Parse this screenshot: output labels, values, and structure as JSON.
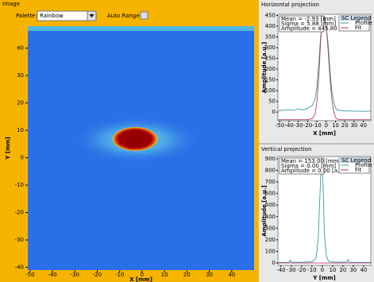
{
  "image_panel": {
    "title": "Image",
    "palette_label": "Palette:",
    "palette_value": "Rainbow",
    "auto_range_label": "Auto Range:",
    "x_label": "X [mm]",
    "y_label": "Y [mm]",
    "xlim": [
      -51,
      50
    ],
    "xticks": [
      -50,
      -40,
      -30,
      -20,
      -10,
      0,
      10,
      20,
      30,
      40
    ],
    "ylim": [
      -41,
      48
    ],
    "yticks": [
      -40,
      -30,
      -20,
      -10,
      0,
      10,
      20,
      30,
      40
    ]
  },
  "horizontal_projection": {
    "type": "line",
    "title": "Horizontal projection",
    "stats": [
      "Mean = -2.93 [mm]",
      "Sigma = 5.88 [mm]",
      "Amplitude = 445.80 [a.u.]"
    ],
    "legend_title": "SC Legend",
    "x_label": "X [mm]",
    "y_label": "Amplitude [a.u.]",
    "xlim": [
      -52,
      48
    ],
    "ylim": [
      -40,
      455
    ],
    "xticks": [
      -50,
      -40,
      -30,
      -20,
      -10,
      0,
      10,
      20,
      30,
      40
    ],
    "yticks": [
      0,
      50,
      100,
      150,
      200,
      250,
      300,
      350,
      400,
      450
    ],
    "x": [
      -52,
      -45,
      -40,
      -35,
      -30,
      -25,
      -20,
      -15,
      -12,
      -10,
      -8,
      -6,
      -4,
      -2,
      0,
      2,
      4,
      6,
      8,
      10,
      12,
      15,
      20,
      25,
      30,
      35,
      40,
      45,
      48
    ],
    "series": [
      {
        "name": "Profile",
        "color": "#3a9aa0",
        "values": [
          5,
          10,
          12,
          8,
          15,
          10,
          18,
          30,
          60,
          120,
          230,
          350,
          420,
          430,
          400,
          320,
          200,
          100,
          50,
          20,
          10,
          8,
          5,
          6,
          4,
          5,
          3,
          4,
          5
        ]
      },
      {
        "name": "Fit",
        "color": "#b03a6a",
        "values": [
          -35,
          -35,
          -35,
          -35,
          -35,
          -35,
          -35,
          -30,
          -10,
          50,
          170,
          330,
          440,
          445,
          400,
          290,
          160,
          60,
          5,
          -25,
          -33,
          -35,
          -35,
          -35,
          -35,
          -35,
          -35,
          -35,
          -35
        ]
      }
    ]
  },
  "vertical_projection": {
    "type": "line",
    "title": "Vertical projection",
    "stats": [
      "Mean = 153.00 [mm]",
      "Sigma = 0.00 [mm]",
      "Amplitude = 0.00 [a.u.]"
    ],
    "legend_title": "SC Legend",
    "x_label": "Y [mm]",
    "y_label": "Amplitude [a.u.]",
    "xlim": [
      -43,
      47
    ],
    "ylim": [
      -20,
      920
    ],
    "xticks": [
      -40,
      -30,
      -20,
      -10,
      0,
      10,
      20,
      30,
      40
    ],
    "yticks": [
      0,
      100,
      200,
      300,
      400,
      500,
      600,
      700,
      800,
      900
    ],
    "x": [
      -43,
      -35,
      -32,
      -31,
      -30,
      -20,
      -10,
      -6,
      -4,
      -2,
      -1,
      0,
      1,
      2,
      4,
      6,
      10,
      20,
      24,
      25,
      26,
      35,
      47
    ],
    "series": [
      {
        "name": "Profile",
        "color": "#3a9aa0",
        "values": [
          5,
          6,
          8,
          25,
          6,
          7,
          10,
          40,
          200,
          650,
          870,
          820,
          600,
          250,
          60,
          15,
          8,
          6,
          8,
          30,
          6,
          5,
          5
        ]
      },
      {
        "name": "Fit",
        "color": "#b03a6a",
        "values": [
          0,
          0,
          0,
          0,
          0,
          0,
          0,
          0,
          0,
          0,
          0,
          0,
          0,
          0,
          0,
          0,
          0,
          0,
          0,
          0,
          0,
          0,
          0
        ]
      }
    ]
  }
}
